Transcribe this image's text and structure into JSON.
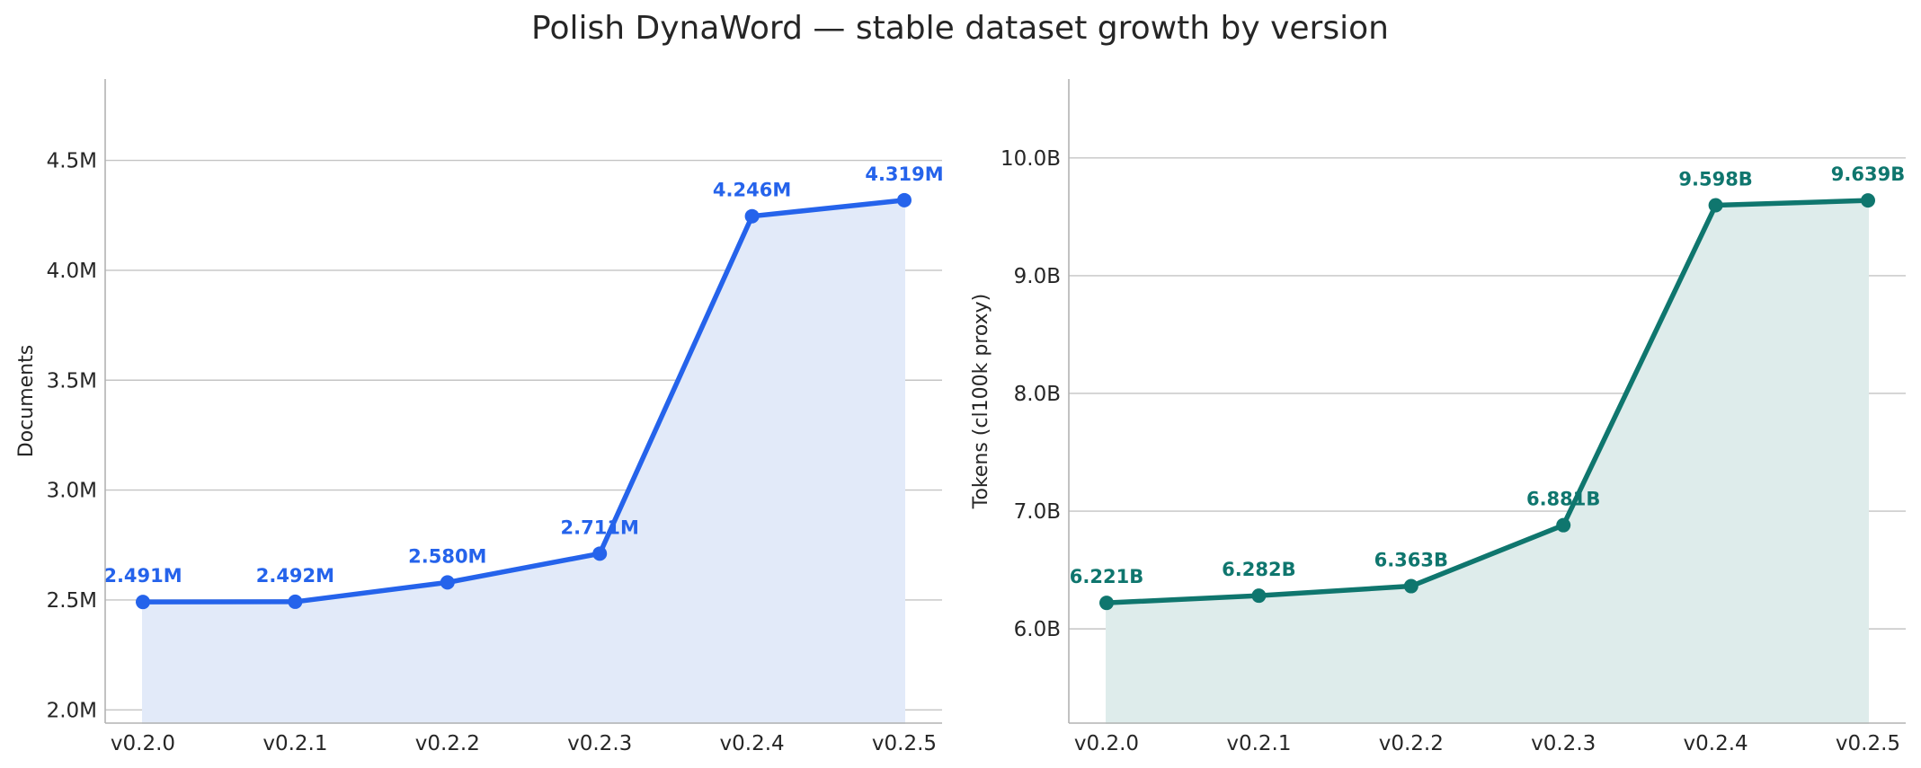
{
  "title": "Polish DynaWord — stable dataset growth by version",
  "chart_data": [
    {
      "type": "area",
      "categories": [
        "v0.2.0",
        "v0.2.1",
        "v0.2.2",
        "v0.2.3",
        "v0.2.4",
        "v0.2.5"
      ],
      "values": [
        2.491,
        2.492,
        2.58,
        2.711,
        4.246,
        4.319
      ],
      "value_labels": [
        "2.491M",
        "2.492M",
        "2.580M",
        "2.711M",
        "4.246M",
        "4.319M"
      ],
      "xlabel": "",
      "ylabel": "Documents",
      "unit_suffix": "M",
      "ylim": [
        1.94,
        4.87
      ],
      "yticks": [
        2.0,
        2.5,
        3.0,
        3.5,
        4.0,
        4.5
      ],
      "ytick_labels": [
        "2.0M",
        "2.5M",
        "3.0M",
        "3.5M",
        "4.0M",
        "4.5M"
      ],
      "grid": "horizontal",
      "color": "#2563eb",
      "fill_color": "#e2eaf9"
    },
    {
      "type": "area",
      "categories": [
        "v0.2.0",
        "v0.2.1",
        "v0.2.2",
        "v0.2.3",
        "v0.2.4",
        "v0.2.5"
      ],
      "values": [
        6.221,
        6.282,
        6.363,
        6.881,
        9.598,
        9.639
      ],
      "value_labels": [
        "6.221B",
        "6.282B",
        "6.363B",
        "6.881B",
        "9.598B",
        "9.639B"
      ],
      "xlabel": "",
      "ylabel": "Tokens (cl100k proxy)",
      "unit_suffix": "B",
      "ylim": [
        5.2,
        10.67
      ],
      "yticks": [
        6.0,
        7.0,
        8.0,
        9.0,
        10.0
      ],
      "ytick_labels": [
        "6.0B",
        "7.0B",
        "8.0B",
        "9.0B",
        "10.0B"
      ],
      "grid": "horizontal",
      "color": "#0f766e",
      "fill_color": "#deeceb"
    }
  ]
}
